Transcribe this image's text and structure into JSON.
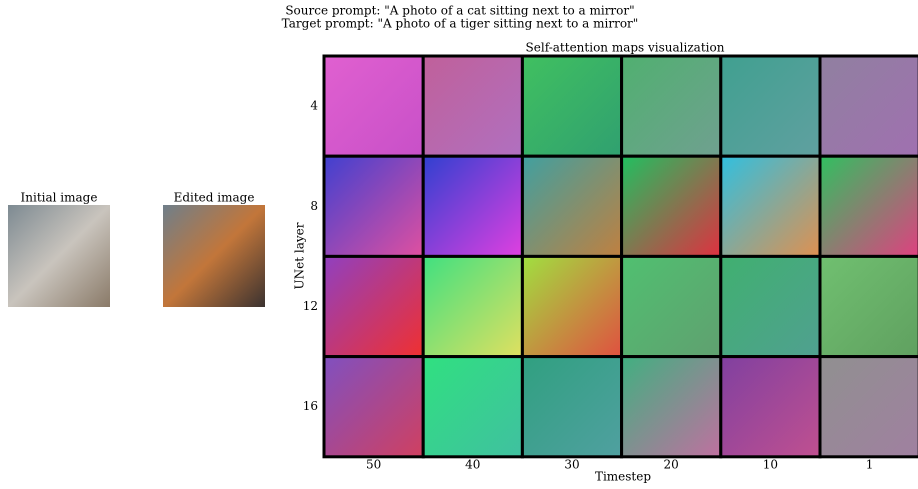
{
  "header": {
    "source_prompt": "Source prompt: \"A photo of a cat sitting next to a mirror\"",
    "target_prompt": "Target prompt: \"A photo of a tiger sitting next to a mirror\""
  },
  "panels": [
    {
      "title": "Initial image"
    },
    {
      "title": "Edited image"
    }
  ],
  "grid": {
    "title": "Self-attention maps visualization",
    "y_label": "UNet layer",
    "x_label": "Timestep",
    "rows": [
      "4",
      "8",
      "12",
      "16"
    ],
    "columns": [
      "50",
      "40",
      "30",
      "20",
      "10",
      "1"
    ]
  }
}
